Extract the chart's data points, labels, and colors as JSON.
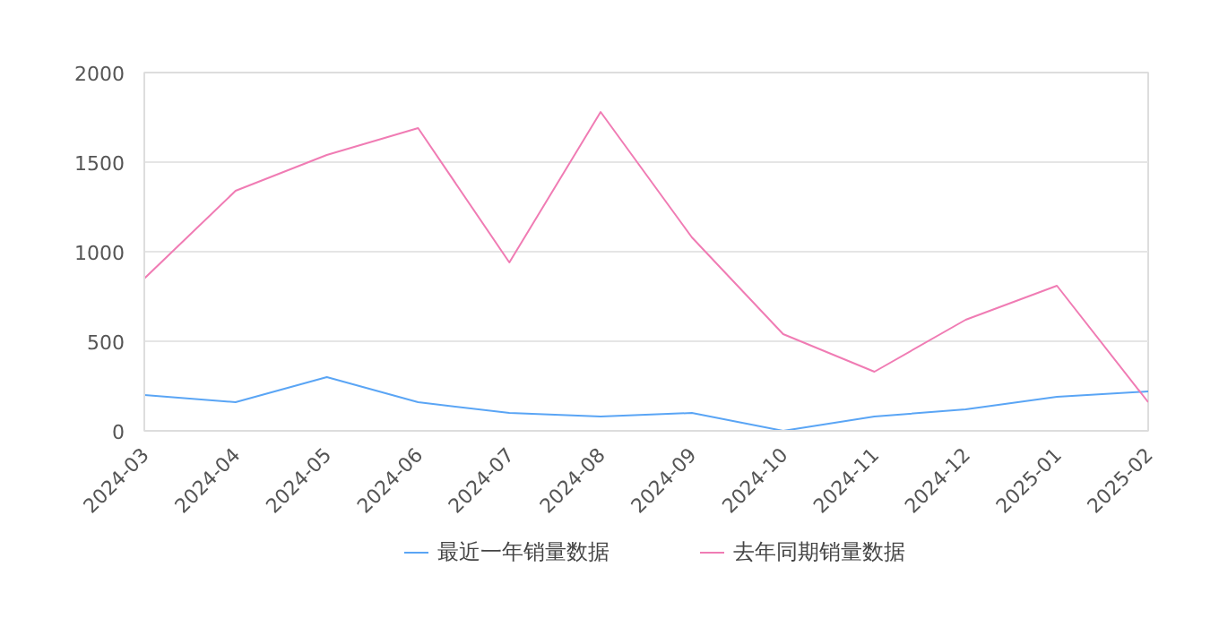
{
  "chart_data": {
    "type": "line",
    "categories": [
      "2024-03",
      "2024-04",
      "2024-05",
      "2024-06",
      "2024-07",
      "2024-08",
      "2024-09",
      "2024-10",
      "2024-11",
      "2024-12",
      "2025-01",
      "2025-02"
    ],
    "series": [
      {
        "name": "最近一年销量数据",
        "color": "#5aa5f5",
        "values": [
          200,
          160,
          300,
          160,
          100,
          80,
          100,
          0,
          80,
          120,
          190,
          220
        ]
      },
      {
        "name": "去年同期销量数据",
        "color": "#f07cb4",
        "values": [
          850,
          1340,
          1540,
          1690,
          940,
          1780,
          1080,
          540,
          330,
          620,
          810,
          160
        ]
      }
    ],
    "ylim": [
      0,
      2000
    ],
    "yticks": [
      0,
      500,
      1000,
      1500,
      2000
    ],
    "grid": "y",
    "legend": "bottom",
    "marker": "none",
    "line_style": "solid"
  }
}
